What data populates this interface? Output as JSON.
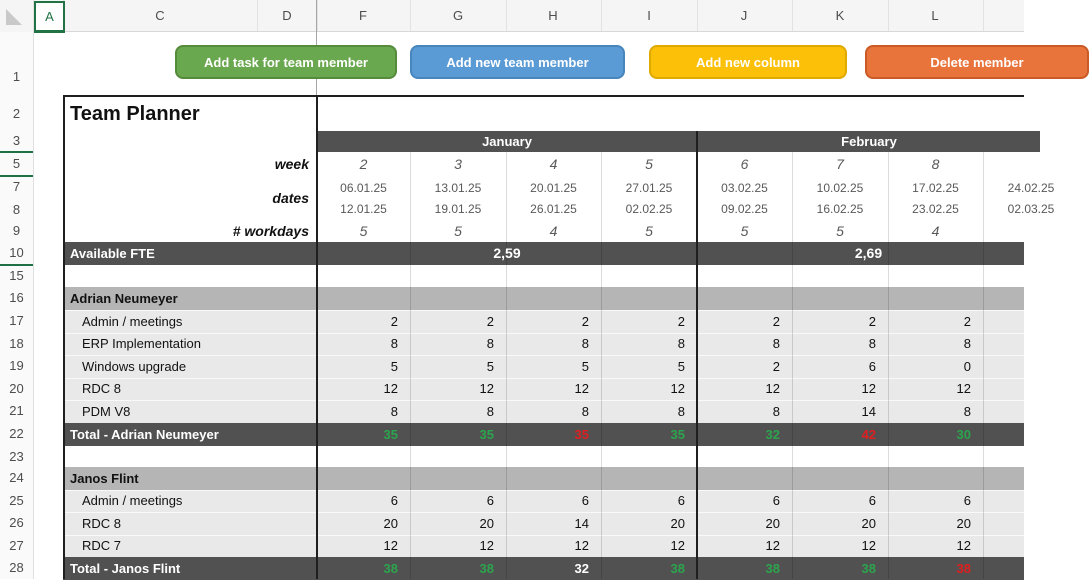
{
  "spreadsheet": {
    "column_headers": [
      "A",
      "C",
      "D",
      "F",
      "G",
      "H",
      "I",
      "J",
      "K",
      "L"
    ],
    "selected_column": "A",
    "row_headers": [
      "1",
      "2",
      "3",
      "5",
      "7",
      "8",
      "9",
      "10",
      "15",
      "16",
      "17",
      "18",
      "19",
      "20",
      "21",
      "22",
      "23",
      "24",
      "25",
      "26",
      "27",
      "28"
    ]
  },
  "toolbar": {
    "buttons": [
      {
        "label": "Add task for team member",
        "color": "#6aa84f"
      },
      {
        "label": "Add new team member",
        "color": "#5b9bd5"
      },
      {
        "label": "Add new column",
        "color": "#fdc008"
      },
      {
        "label": "Delete member",
        "color": "#e8743c"
      }
    ]
  },
  "planner": {
    "title": "Team Planner",
    "row_labels": {
      "week": "week",
      "dates": "dates",
      "workdays": "# workdays"
    },
    "months": [
      {
        "name": "January"
      },
      {
        "name": "February"
      }
    ],
    "weeks": [
      {
        "week": "2",
        "date_start": "06.01.25",
        "date_end": "12.01.25",
        "workdays": "5"
      },
      {
        "week": "3",
        "date_start": "13.01.25",
        "date_end": "19.01.25",
        "workdays": "5"
      },
      {
        "week": "4",
        "date_start": "20.01.25",
        "date_end": "26.01.25",
        "workdays": "4"
      },
      {
        "week": "5",
        "date_start": "27.01.25",
        "date_end": "02.02.25",
        "workdays": "5"
      },
      {
        "week": "6",
        "date_start": "03.02.25",
        "date_end": "09.02.25",
        "workdays": "5"
      },
      {
        "week": "7",
        "date_start": "10.02.25",
        "date_end": "16.02.25",
        "workdays": "5"
      },
      {
        "week": "8",
        "date_start": "17.02.25",
        "date_end": "23.02.25",
        "workdays": "4"
      },
      {
        "week": "",
        "date_start": "24.02.25",
        "date_end": "02.03.25",
        "workdays": ""
      }
    ],
    "available_fte": {
      "label": "Available FTE",
      "january": "2,59",
      "february": "2,69"
    },
    "members": [
      {
        "name": "Adrian Neumeyer",
        "tasks": [
          {
            "label": "Admin / meetings",
            "values": [
              2,
              2,
              2,
              2,
              2,
              2,
              2
            ]
          },
          {
            "label": "ERP Implementation",
            "values": [
              8,
              8,
              8,
              8,
              8,
              8,
              8
            ]
          },
          {
            "label": "Windows upgrade",
            "values": [
              5,
              5,
              5,
              5,
              2,
              6,
              0
            ]
          },
          {
            "label": "RDC 8",
            "values": [
              12,
              12,
              12,
              12,
              12,
              12,
              12
            ]
          },
          {
            "label": "PDM V8",
            "values": [
              8,
              8,
              8,
              8,
              8,
              14,
              8
            ]
          }
        ],
        "total_label": "Total - Adrian Neumeyer",
        "totals": [
          {
            "value": "35",
            "status": "green"
          },
          {
            "value": "35",
            "status": "green"
          },
          {
            "value": "35",
            "status": "red"
          },
          {
            "value": "35",
            "status": "green"
          },
          {
            "value": "32",
            "status": "green"
          },
          {
            "value": "42",
            "status": "red"
          },
          {
            "value": "30",
            "status": "green"
          }
        ]
      },
      {
        "name": "Janos Flint",
        "tasks": [
          {
            "label": "Admin / meetings",
            "values": [
              6,
              6,
              6,
              6,
              6,
              6,
              6
            ]
          },
          {
            "label": "RDC 8",
            "values": [
              20,
              20,
              14,
              20,
              20,
              20,
              20
            ]
          },
          {
            "label": "RDC 7",
            "values": [
              12,
              12,
              12,
              12,
              12,
              12,
              12
            ]
          }
        ],
        "total_label": "Total - Janos Flint",
        "totals": [
          {
            "value": "38",
            "status": "green"
          },
          {
            "value": "38",
            "status": "green"
          },
          {
            "value": "32",
            "status": "white"
          },
          {
            "value": "38",
            "status": "green"
          },
          {
            "value": "38",
            "status": "green"
          },
          {
            "value": "38",
            "status": "green"
          },
          {
            "value": "38",
            "status": "red"
          }
        ]
      }
    ]
  },
  "colors": {
    "dark_band": "#515151",
    "member_band": "#b5b5b5",
    "task_row": "#e9e9e9",
    "total_green": "#2ca44e",
    "total_red": "#df1f1f",
    "total_white": "#ffffff",
    "selection_green": "#217346"
  }
}
